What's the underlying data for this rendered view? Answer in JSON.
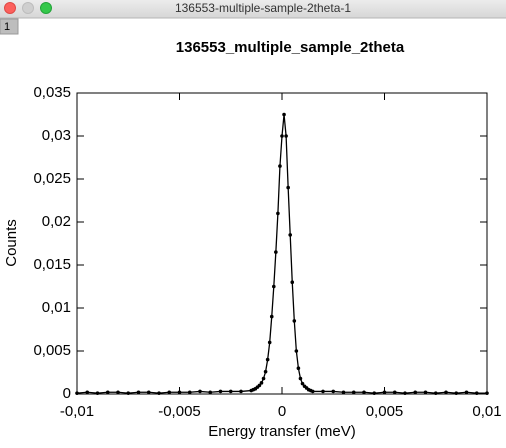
{
  "window": {
    "title": "136553-multiple-sample-2theta-1",
    "tab": "1"
  },
  "chart_data": {
    "type": "line",
    "title": "136553_multiple_sample_2theta",
    "x_label": "Energy transfer (meV)",
    "y_label": "Counts",
    "xlim": [
      -0.01,
      0.01
    ],
    "ylim": [
      0,
      0.035
    ],
    "xticks": [
      {
        "value": -0.01,
        "label": "-0,01"
      },
      {
        "value": -0.005,
        "label": "-0,005"
      },
      0,
      {
        "value": 0.005,
        "label": "0,005"
      },
      {
        "value": 0.01,
        "label": "0,01"
      }
    ],
    "yticks": [
      0,
      {
        "value": 0.005,
        "label": "0,005"
      },
      {
        "value": 0.01,
        "label": "0,01"
      },
      {
        "value": 0.015,
        "label": "0,015"
      },
      {
        "value": 0.02,
        "label": "0,02"
      },
      {
        "value": 0.025,
        "label": "0,025"
      },
      {
        "value": 0.03,
        "label": "0,03"
      },
      {
        "value": 0.035,
        "label": "0,035"
      }
    ],
    "color": "#000000",
    "x": [
      -0.01,
      -0.0095,
      -0.009,
      -0.0085,
      -0.008,
      -0.0075,
      -0.007,
      -0.0065,
      -0.006,
      -0.0055,
      -0.005,
      -0.0045,
      -0.004,
      -0.0035,
      -0.003,
      -0.0025,
      -0.002,
      -0.0015,
      -0.0014,
      -0.0013,
      -0.0012,
      -0.0011,
      -0.001,
      -0.0009,
      -0.0008,
      -0.0007,
      -0.0006,
      -0.0005,
      -0.0004,
      -0.0003,
      -0.0002,
      -0.0001,
      0,
      0.0001,
      0.0002,
      0.0003,
      0.0004,
      0.0005,
      0.0006,
      0.0007,
      0.0008,
      0.0009,
      0.001,
      0.0011,
      0.0012,
      0.0013,
      0.0014,
      0.0015,
      0.002,
      0.0025,
      0.003,
      0.0035,
      0.004,
      0.0045,
      0.005,
      0.0055,
      0.006,
      0.0065,
      0.007,
      0.0075,
      0.008,
      0.0085,
      0.009,
      0.0095,
      0.01
    ],
    "values": [
      0.0001,
      0.0002,
      0.0001,
      0.0002,
      0.0002,
      0.0001,
      0.0002,
      0.0002,
      0.0001,
      0.0002,
      0.0002,
      0.0002,
      0.0003,
      0.0002,
      0.0003,
      0.0003,
      0.0003,
      0.0004,
      0.0005,
      0.0006,
      0.0008,
      0.001,
      0.0013,
      0.0018,
      0.0026,
      0.004,
      0.006,
      0.009,
      0.0125,
      0.0165,
      0.021,
      0.0265,
      0.03,
      0.0325,
      0.03,
      0.024,
      0.0185,
      0.013,
      0.0085,
      0.005,
      0.003,
      0.0018,
      0.0012,
      0.0009,
      0.0007,
      0.0005,
      0.0004,
      0.0003,
      0.0003,
      0.0003,
      0.0002,
      0.0002,
      0.0002,
      0.0001,
      0.0002,
      0.0002,
      0.0001,
      0.0002,
      0.0002,
      0.0001,
      0.0002,
      0.0001,
      0.0002,
      0.0001,
      0.0001
    ]
  }
}
